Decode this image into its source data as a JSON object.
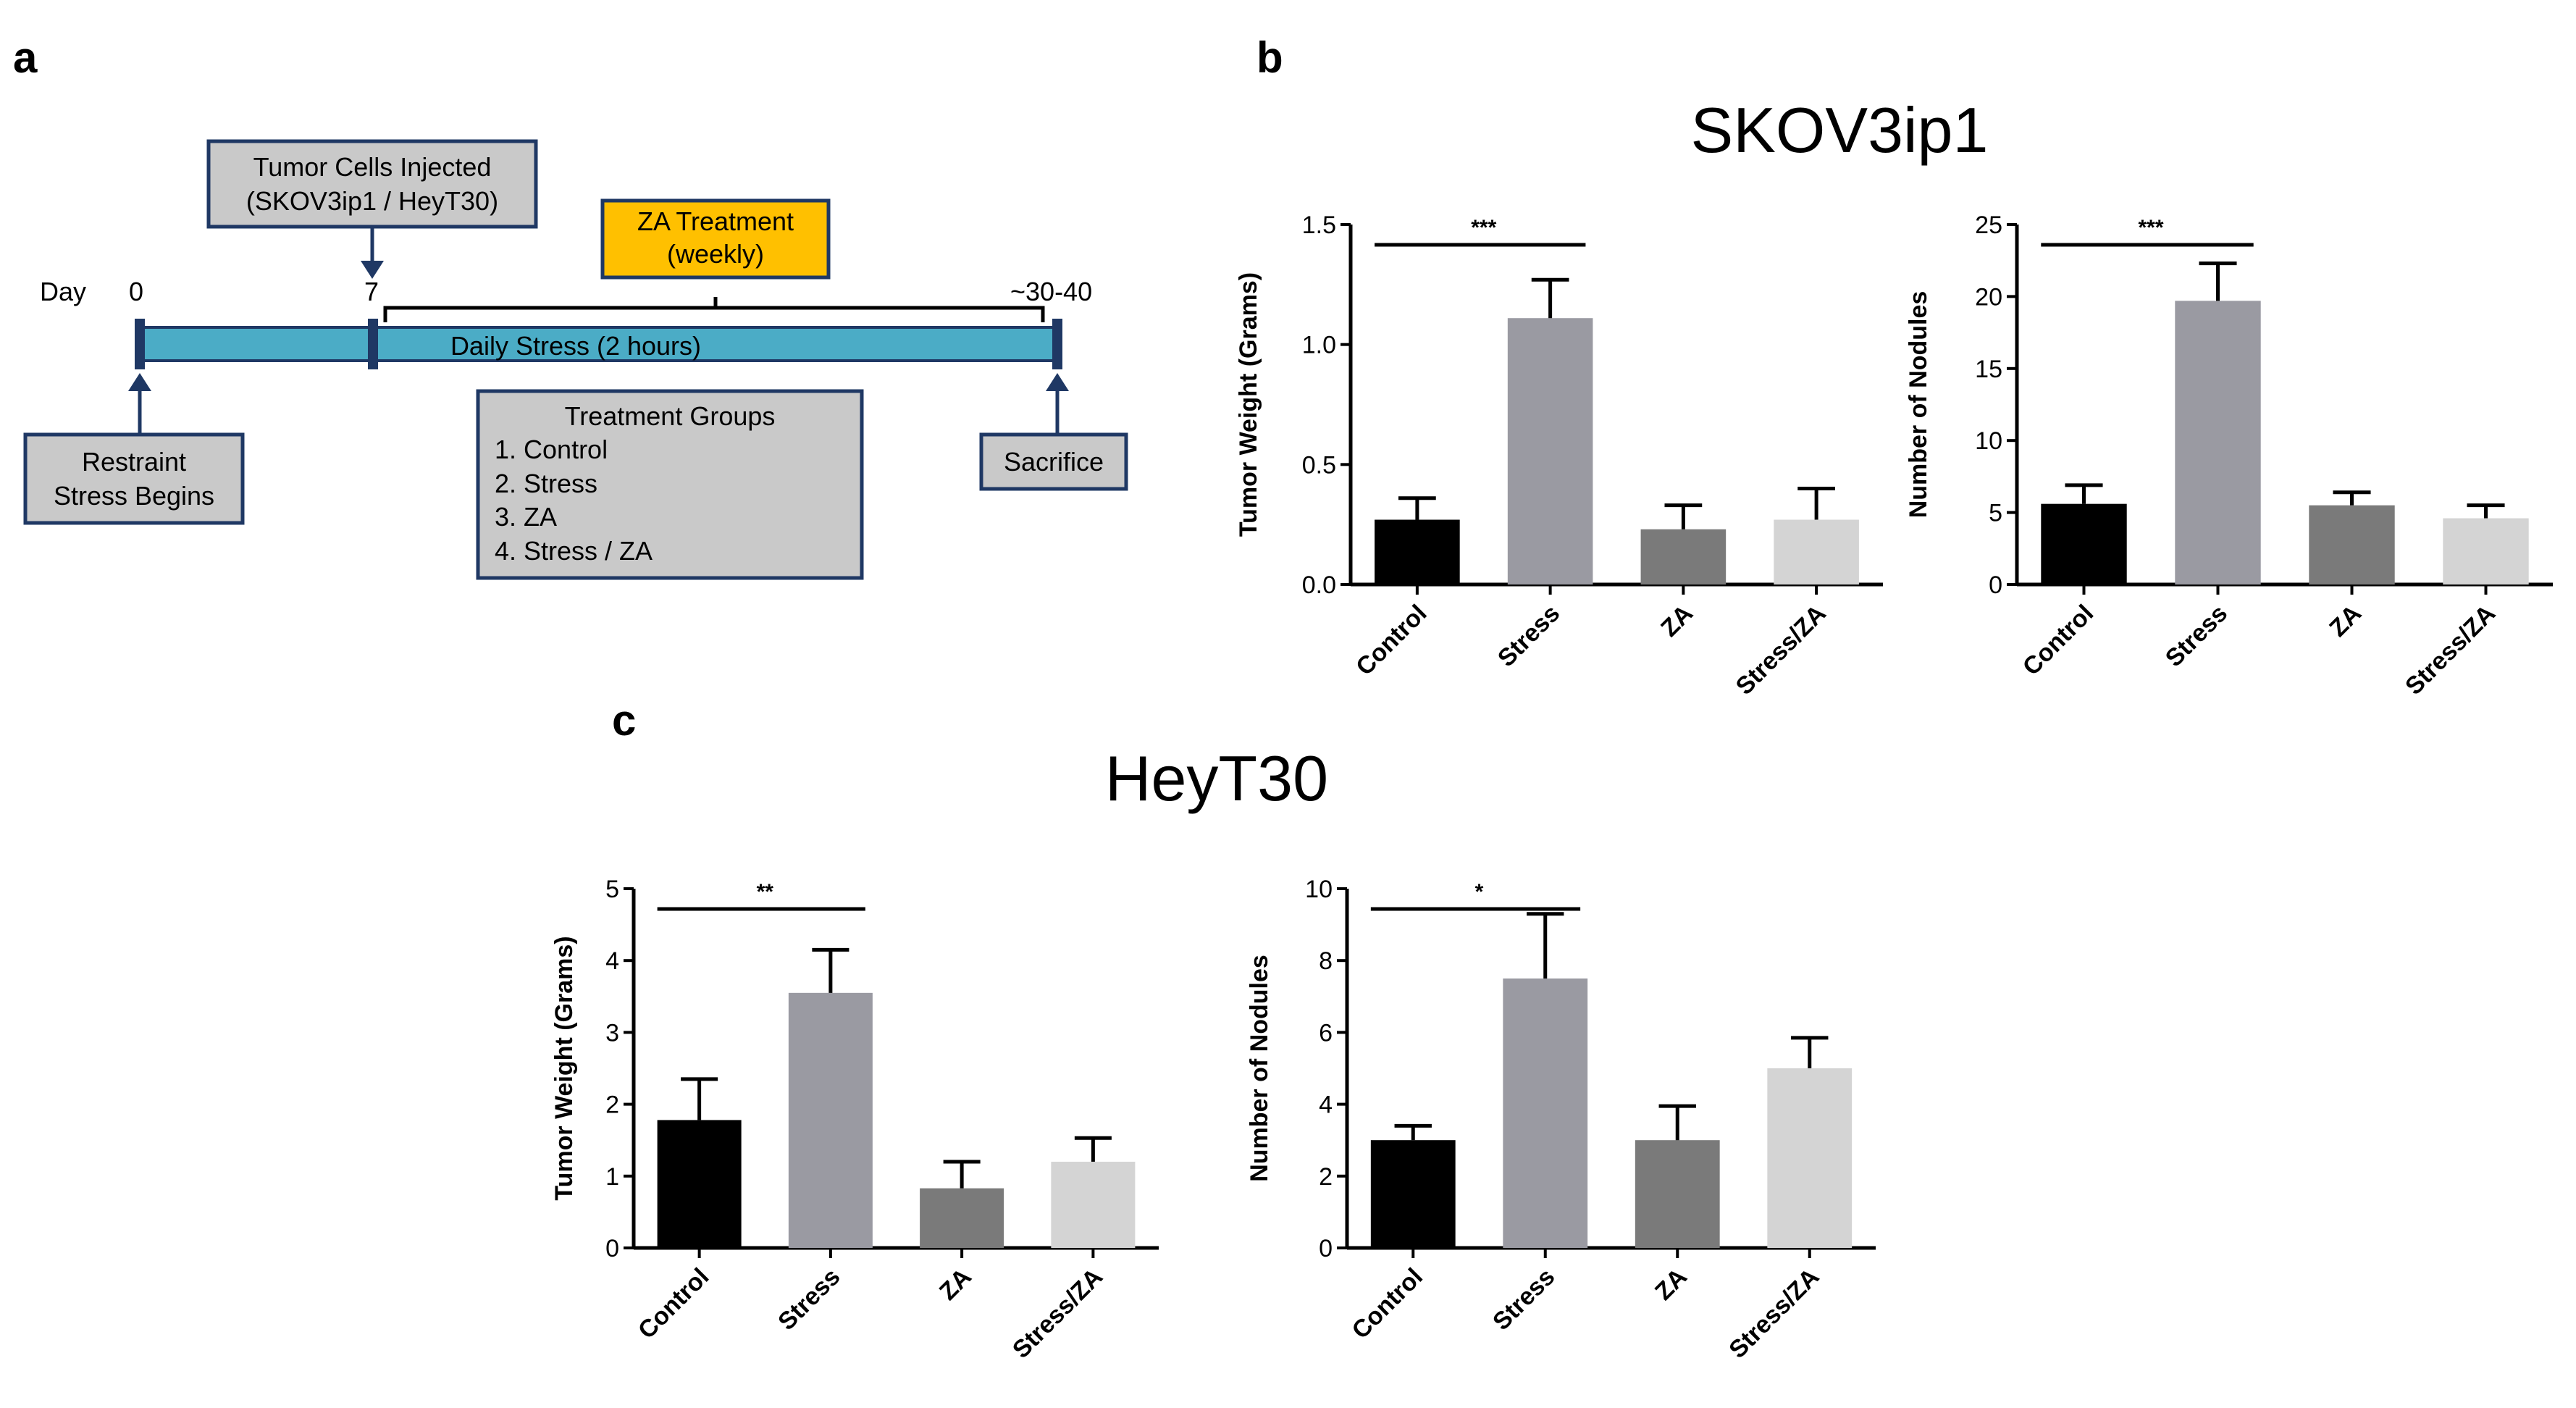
{
  "panels": {
    "a": "a",
    "b": "b",
    "c": "c"
  },
  "timeline": {
    "day_label": "Day",
    "day_markers": [
      "0",
      "7",
      "~30-40"
    ],
    "injection_box": [
      "Tumor Cells Injected",
      "(SKOV3ip1 / HeyT30)"
    ],
    "treatment_box": [
      "ZA Treatment",
      "(weekly)"
    ],
    "bar_label": "Daily Stress (2 hours)",
    "restraint_box": [
      "Restraint",
      "Stress Begins"
    ],
    "groups_box": {
      "title": "Treatment Groups",
      "items": [
        "1. Control",
        "2. Stress",
        "3. ZA",
        "4. Stress / ZA"
      ]
    },
    "sacrifice_box": "Sacrifice",
    "colors": {
      "bar": "#4bacc6",
      "bar_edge": "#1f3864",
      "box_fill": "#c9c9c9",
      "treatment_fill": "#ffc000"
    }
  },
  "titles": {
    "b": "SKOV3ip1",
    "c": "HeyT30"
  },
  "chart_data": [
    {
      "id": "b-weight",
      "type": "bar",
      "categories": [
        "Control",
        "Stress",
        "ZA",
        "Stress/ZA"
      ],
      "values": [
        0.27,
        1.11,
        0.23,
        0.27
      ],
      "errors": [
        0.09,
        0.16,
        0.1,
        0.13
      ],
      "ylabel": "Tumor Weight (Grams)",
      "ylim": [
        0,
        1.5
      ],
      "yticks": [
        "0.0",
        "0.5",
        "1.0",
        "1.5"
      ],
      "significance": {
        "label": "***",
        "from": 0,
        "to": 1
      },
      "colors": [
        "#000000",
        "#9a9aa2",
        "#7a7a7a",
        "#d4d4d4"
      ]
    },
    {
      "id": "b-nodules",
      "type": "bar",
      "categories": [
        "Control",
        "Stress",
        "ZA",
        "Stress/ZA"
      ],
      "values": [
        5.6,
        19.7,
        5.5,
        4.6
      ],
      "errors": [
        1.3,
        2.6,
        0.9,
        0.9
      ],
      "ylabel": "Number of Nodules",
      "ylim": [
        0,
        25
      ],
      "yticks": [
        "0",
        "5",
        "10",
        "15",
        "20",
        "25"
      ],
      "significance": {
        "label": "***",
        "from": 0,
        "to": 1
      },
      "colors": [
        "#000000",
        "#9a9aa2",
        "#7a7a7a",
        "#d4d4d4"
      ]
    },
    {
      "id": "c-weight",
      "type": "bar",
      "categories": [
        "Control",
        "Stress",
        "ZA",
        "Stress/ZA"
      ],
      "values": [
        1.78,
        3.55,
        0.83,
        1.2
      ],
      "errors": [
        0.57,
        0.6,
        0.37,
        0.33
      ],
      "ylabel": "Tumor Weight (Grams)",
      "ylim": [
        0,
        5
      ],
      "yticks": [
        "0",
        "1",
        "2",
        "3",
        "4",
        "5"
      ],
      "significance": {
        "label": "**",
        "from": 0,
        "to": 1
      },
      "colors": [
        "#000000",
        "#9a9aa2",
        "#7a7a7a",
        "#d4d4d4"
      ]
    },
    {
      "id": "c-nodules",
      "type": "bar",
      "categories": [
        "Control",
        "Stress",
        "ZA",
        "Stress/ZA"
      ],
      "values": [
        3.0,
        7.5,
        3.0,
        5.0
      ],
      "errors": [
        0.4,
        1.8,
        0.95,
        0.85
      ],
      "ylabel": "Number of Nodules",
      "ylim": [
        0,
        10
      ],
      "yticks": [
        "0",
        "2",
        "4",
        "6",
        "8",
        "10"
      ],
      "significance": {
        "label": "*",
        "from": 0,
        "to": 1
      },
      "colors": [
        "#000000",
        "#9a9aa2",
        "#7a7a7a",
        "#d4d4d4"
      ]
    }
  ]
}
